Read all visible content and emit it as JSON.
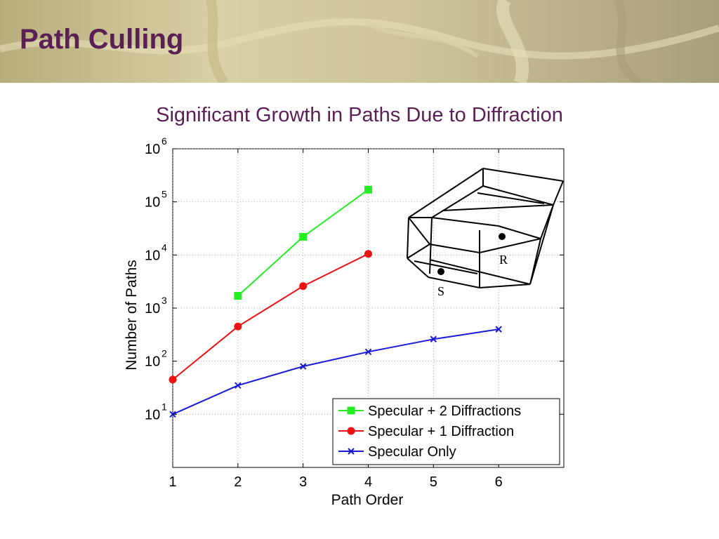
{
  "slide": {
    "title": "Path Culling",
    "subtitle": "Significant Growth in Paths Due to Diffraction"
  },
  "colors": {
    "title": "#5a1f55",
    "green_series": "#22ee22",
    "red_series": "#ee1111",
    "blue_series": "#1a1ad6"
  },
  "chart_data": {
    "type": "line",
    "xlabel": "Path Order",
    "ylabel": "Number of Paths",
    "y_scale": "log",
    "xlim": [
      1,
      7
    ],
    "ylim": [
      1,
      1000000
    ],
    "x_ticks": [
      "1",
      "2",
      "3",
      "4",
      "5",
      "6"
    ],
    "y_ticks": [
      {
        "base": "10",
        "exp": "1"
      },
      {
        "base": "10",
        "exp": "2"
      },
      {
        "base": "10",
        "exp": "3"
      },
      {
        "base": "10",
        "exp": "4"
      },
      {
        "base": "10",
        "exp": "5"
      },
      {
        "base": "10",
        "exp": "6"
      }
    ],
    "grid": true,
    "legend_position": "bottom-right",
    "series": [
      {
        "name": "Specular + 2 Diffractions",
        "marker": "square",
        "color": "#22ee22",
        "x": [
          2,
          3,
          4
        ],
        "y": [
          1700,
          22000,
          170000
        ]
      },
      {
        "name": "Specular + 1 Diffraction",
        "marker": "circle",
        "color": "#ee1111",
        "x": [
          1,
          2,
          3,
          4
        ],
        "y": [
          45,
          450,
          2600,
          10500
        ]
      },
      {
        "name": "Specular Only",
        "marker": "x",
        "color": "#1a1ad6",
        "x": [
          1,
          2,
          3,
          4,
          5,
          6
        ],
        "y": [
          10,
          35,
          80,
          150,
          260,
          400
        ]
      }
    ],
    "inset_labels": {
      "source": "S",
      "receiver": "R"
    }
  }
}
